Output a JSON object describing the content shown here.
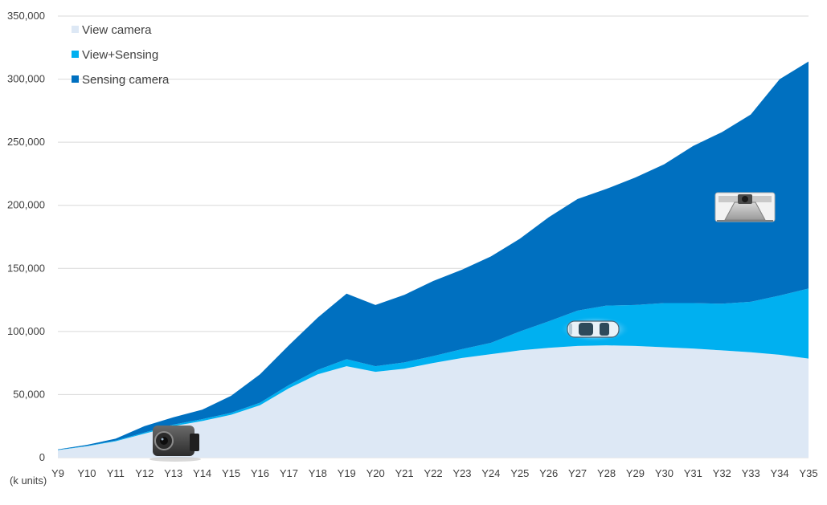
{
  "chart_data": {
    "type": "area",
    "stacked": true,
    "title": "",
    "xlabel": "",
    "ylabel": "",
    "unit_label": "(k units)",
    "x": [
      "Y9",
      "Y10",
      "Y11",
      "Y12",
      "Y13",
      "Y14",
      "Y15",
      "Y16",
      "Y17",
      "Y18",
      "Y19",
      "Y20",
      "Y21",
      "Y22",
      "Y23",
      "Y24",
      "Y25",
      "Y26",
      "Y27",
      "Y28",
      "Y29",
      "Y30",
      "Y31",
      "Y32",
      "Y33",
      "Y34",
      "Y35"
    ],
    "ylim": [
      0,
      350000
    ],
    "yticks": [
      0,
      50000,
      100000,
      150000,
      200000,
      250000,
      300000,
      350000
    ],
    "ytick_labels": [
      "0",
      "50,000",
      "100,000",
      "150,000",
      "200,000",
      "250,000",
      "300,000",
      "350,000"
    ],
    "grid": true,
    "legend_position": "top-left",
    "series": [
      {
        "name": "View camera",
        "color": "#dde8f5",
        "values": [
          6000,
          9000,
          13000,
          19000,
          25000,
          29000,
          34000,
          41500,
          55000,
          66000,
          72500,
          68000,
          70500,
          75000,
          79000,
          82000,
          85000,
          87000,
          88500,
          89000,
          88500,
          87500,
          86500,
          85000,
          83500,
          81500,
          78500
        ]
      },
      {
        "name": "View+Sensing",
        "color": "#00b0f0",
        "values": [
          200,
          300,
          500,
          900,
          1200,
          1500,
          1500,
          2000,
          2500,
          3500,
          5500,
          4500,
          5000,
          5500,
          7000,
          9000,
          15000,
          21000,
          28000,
          31500,
          32500,
          35000,
          36000,
          37000,
          40000,
          47000,
          55500
        ]
      },
      {
        "name": "Sensing camera",
        "color": "#0070c0",
        "values": [
          300,
          800,
          1500,
          5100,
          5800,
          7500,
          13500,
          22500,
          31500,
          41500,
          52000,
          48500,
          53500,
          59500,
          63000,
          68500,
          73500,
          82500,
          88500,
          92500,
          101000,
          110000,
          124500,
          136000,
          148500,
          171500,
          180000
        ]
      }
    ],
    "icons": [
      {
        "name": "rear-view-camera-icon",
        "near": "Y13"
      },
      {
        "name": "car-icon",
        "near": "Y27"
      },
      {
        "name": "windshield-sensing-camera-icon",
        "near": "Y33"
      }
    ]
  }
}
